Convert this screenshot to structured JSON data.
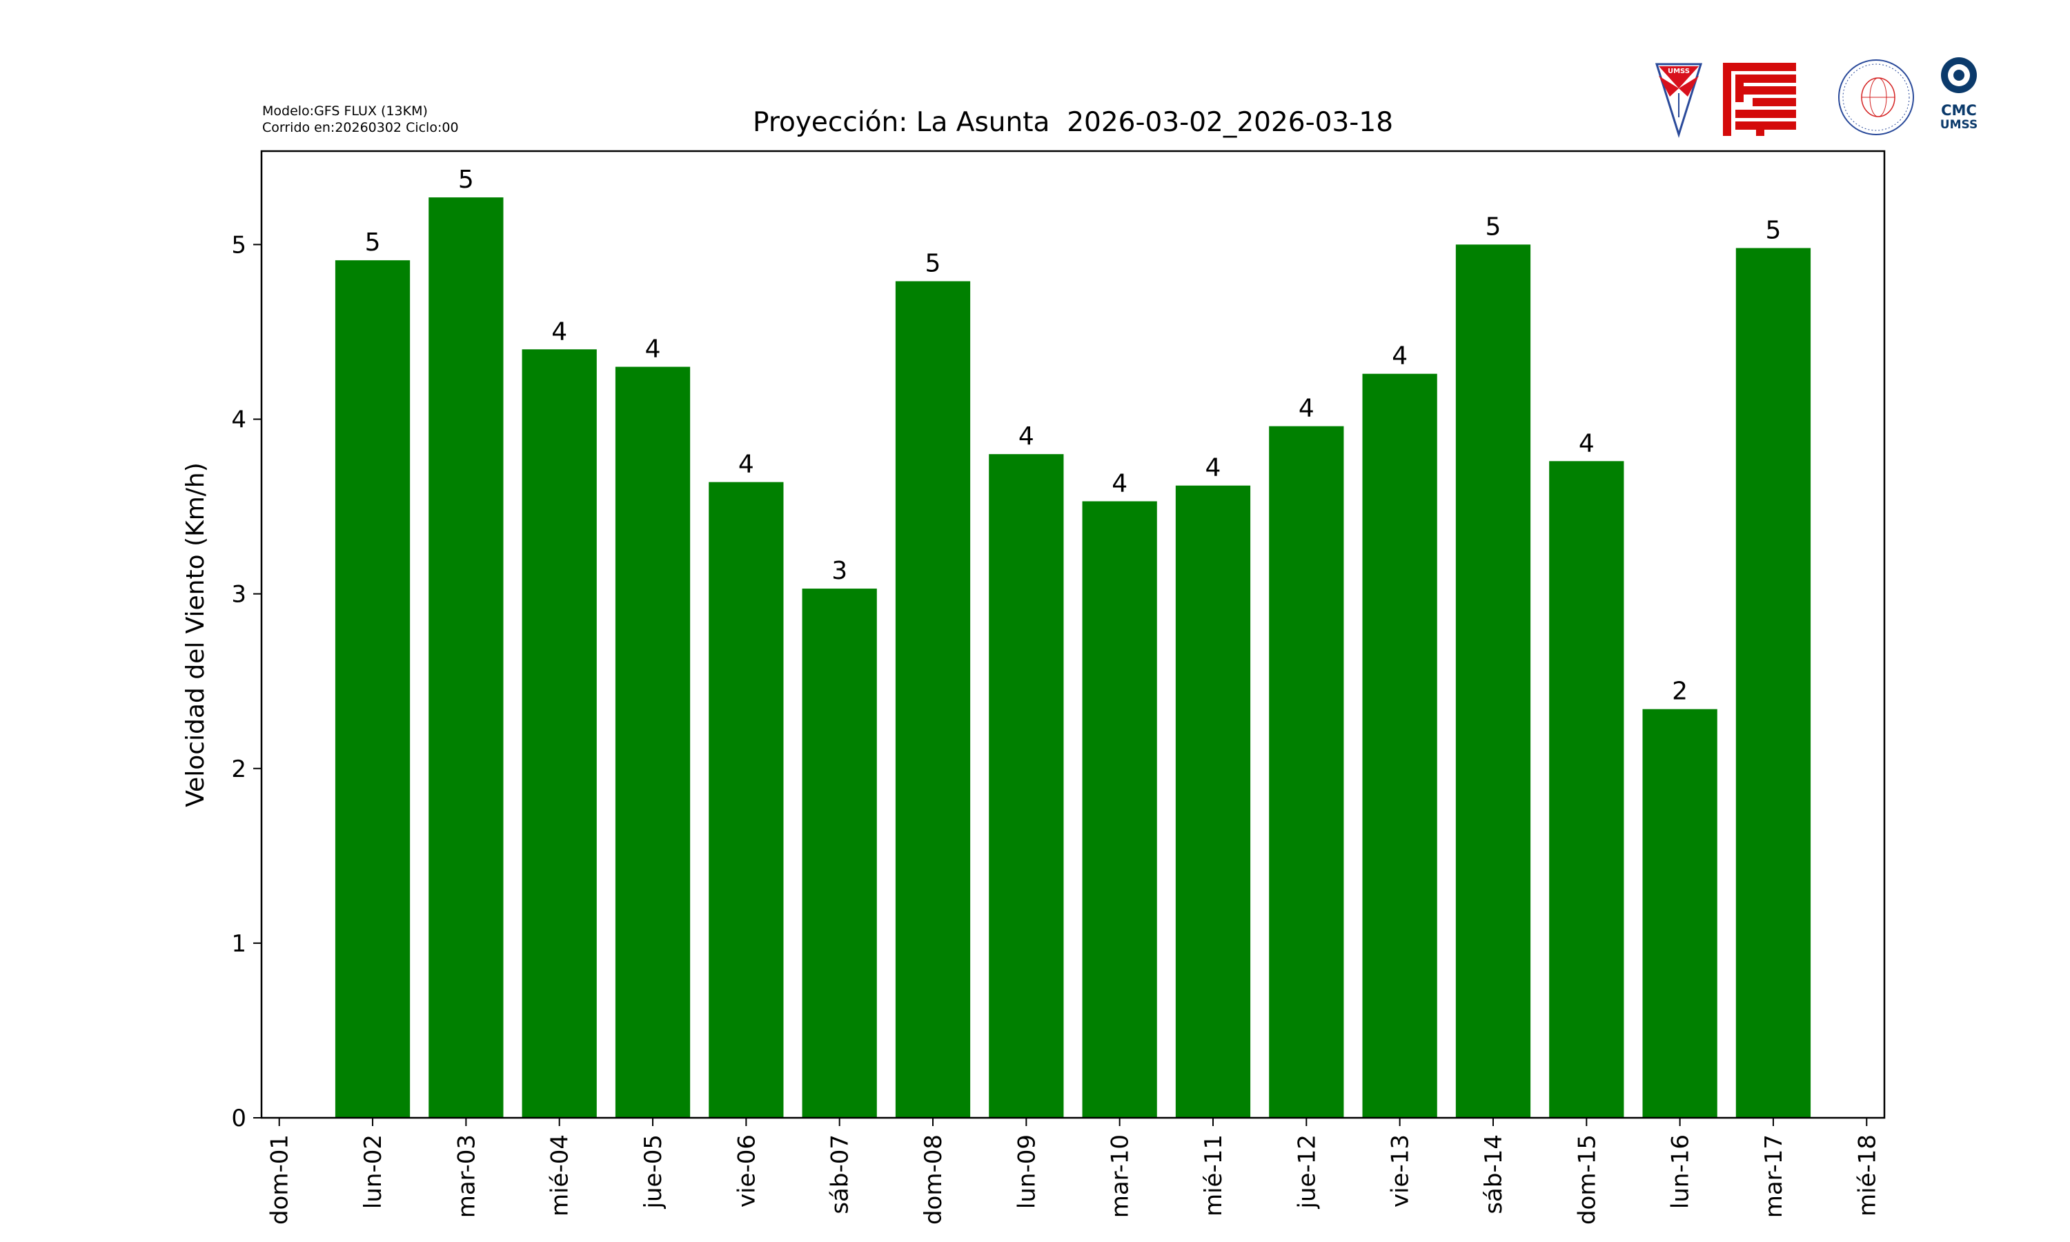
{
  "header": {
    "model_line": "Modelo:GFS FLUX (13KM)",
    "run_line": "Corrido en:20260302 Ciclo:00",
    "logos": [
      {
        "name": "umss-logo",
        "text": "UMSS"
      },
      {
        "name": "fcyt-logo",
        "text": ""
      },
      {
        "name": "departamento-fisica-logo",
        "text": "DEPARTAMENTO DE FÍSICA FCyT-UMSS"
      },
      {
        "name": "cmc-umss-logo",
        "text": "CMC UMSS"
      }
    ]
  },
  "chart_data": {
    "type": "bar",
    "title": "Proyección: La Asunta  2026-03-02_2026-03-18",
    "xlabel": "",
    "ylabel": "Velocidad del Viento (Km/h)",
    "ylim": [
      0,
      5.535
    ],
    "xlim": [
      -0.19,
      17.19
    ],
    "yticks": [
      0,
      1,
      2,
      3,
      4,
      5
    ],
    "xtick_labels": [
      "dom-01",
      "lun-02",
      "mar-03",
      "mié-04",
      "jue-05",
      "vie-06",
      "sáb-07",
      "dom-08",
      "lun-09",
      "mar-10",
      "mié-11",
      "jue-12",
      "vie-13",
      "sáb-14",
      "dom-15",
      "lun-16",
      "mar-17",
      "mié-18"
    ],
    "categories": [
      "lun-02",
      "mar-03",
      "mié-04",
      "jue-05",
      "vie-06",
      "sáb-07",
      "dom-08",
      "lun-09",
      "mar-10",
      "mié-11",
      "jue-12",
      "vie-13",
      "sáb-14",
      "dom-15",
      "lun-16",
      "mar-17"
    ],
    "bar_positions": [
      1,
      2,
      3,
      4,
      5,
      6,
      7,
      8,
      9,
      10,
      11,
      12,
      13,
      14,
      15,
      16
    ],
    "values": [
      4.91,
      5.27,
      4.4,
      4.3,
      3.64,
      3.03,
      4.79,
      3.8,
      3.53,
      3.62,
      3.96,
      4.26,
      5.0,
      3.76,
      2.34,
      4.98
    ],
    "data_labels": [
      "5",
      "5",
      "4",
      "4",
      "4",
      "3",
      "5",
      "4",
      "4",
      "4",
      "4",
      "4",
      "5",
      "4",
      "2",
      "5"
    ],
    "bar_color": "#008000",
    "grid": false,
    "legend": "none"
  }
}
